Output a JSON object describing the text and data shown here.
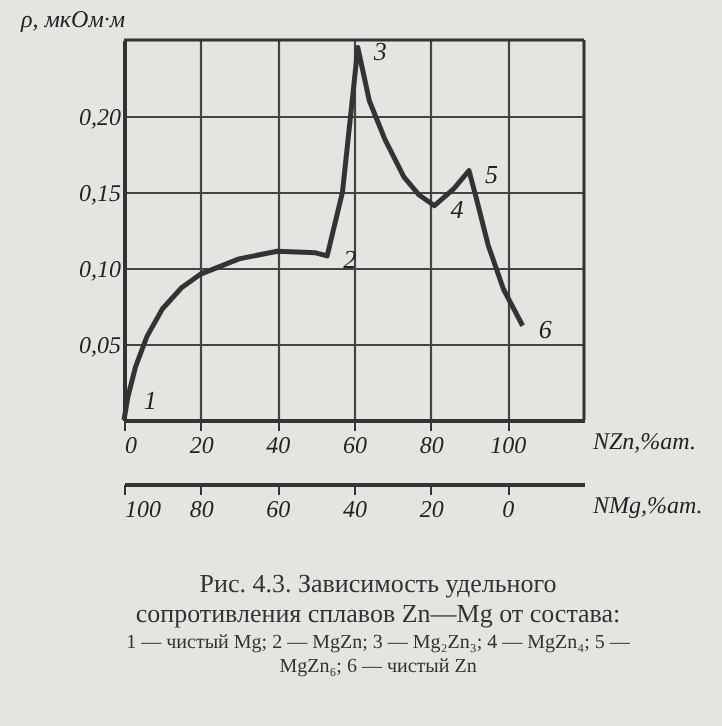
{
  "chart_data": {
    "type": "line",
    "xlabel": "NZn,%ат.",
    "ylabel": "ρ, мкОм·м",
    "x2label": "NMg,%ат.",
    "x": [
      0,
      1,
      3,
      6,
      10,
      15,
      20,
      30,
      40,
      50,
      53,
      57,
      61,
      64,
      68,
      73,
      77,
      81,
      86,
      90,
      92,
      95,
      99,
      104
    ],
    "series": [
      {
        "color": "#333333",
        "values": [
          0,
          0.015,
          0.035,
          0.055,
          0.073,
          0.087,
          0.096,
          0.106,
          0.111,
          0.11,
          0.108,
          0.15,
          0.245,
          0.21,
          0.185,
          0.16,
          0.148,
          0.141,
          0.152,
          0.164,
          0.145,
          0.115,
          0.086,
          0.062
        ]
      }
    ],
    "xlim": [
      0,
      120
    ],
    "xticks": [
      0,
      20,
      40,
      60,
      80,
      100
    ],
    "x2lim": [
      100,
      -20
    ],
    "x2ticks": [
      100,
      80,
      60,
      40,
      20,
      0
    ],
    "ylim": [
      0,
      0.25
    ],
    "yticks": [
      {
        "value": 0.05,
        "label": "0,05"
      },
      {
        "value": 0.1,
        "label": "0,10"
      },
      {
        "value": 0.15,
        "label": "0,15"
      },
      {
        "value": 0.2,
        "label": "0,20"
      }
    ],
    "grid": true,
    "marker": "none",
    "line_style": "solid",
    "legend": false,
    "annotations": [
      {
        "text": "1",
        "x": 1,
        "y": 0.015
      },
      {
        "text": "2",
        "x": 53,
        "y": 0.108
      },
      {
        "text": "3",
        "x": 61,
        "y": 0.245
      },
      {
        "text": "4",
        "x": 81,
        "y": 0.141
      },
      {
        "text": "5",
        "x": 90,
        "y": 0.164
      },
      {
        "text": "6",
        "x": 104,
        "y": 0.062
      },
      "Рис. 4.3. Зависимость удельного сопротивления сплавов Zn—Mg от состава:",
      "1 — чистый Mg; 2 — MgZn; 3 — Mg₂Zn₃; 4 — MgZn₄; 5 — MgZn₆; 6 — чистый Zn"
    ]
  }
}
